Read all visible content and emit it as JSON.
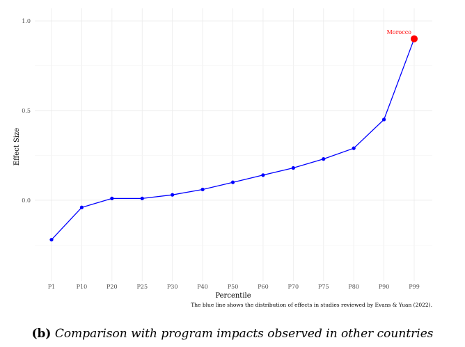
{
  "chart_data": {
    "type": "line",
    "xlabel": "Percentile",
    "ylabel": "Effect Size",
    "categories": [
      "P1",
      "P10",
      "P20",
      "P25",
      "P30",
      "P40",
      "P50",
      "P60",
      "P70",
      "P75",
      "P80",
      "P90",
      "P99"
    ],
    "series": [
      {
        "name": "Distribution of effects",
        "color": "#0000ff",
        "values": [
          -0.22,
          -0.04,
          0.01,
          0.01,
          0.03,
          0.06,
          0.1,
          0.14,
          0.18,
          0.23,
          0.29,
          0.45,
          0.9
        ]
      }
    ],
    "highlight": {
      "label": "Morocco",
      "category": "P99",
      "value": 0.9,
      "color": "#ff0000"
    },
    "yticks": [
      0.0,
      0.5,
      1.0
    ],
    "ytick_labels": [
      "0.0",
      "0.5",
      "1.0"
    ],
    "ylim": [
      -0.45,
      1.07
    ],
    "grid": true,
    "note": "The blue line shows the distribution of effects in studies reviewed by Evans & Yuan (2022)."
  },
  "caption": {
    "tag": "(b)",
    "text": "Comparison with program impacts observed in other countries"
  }
}
